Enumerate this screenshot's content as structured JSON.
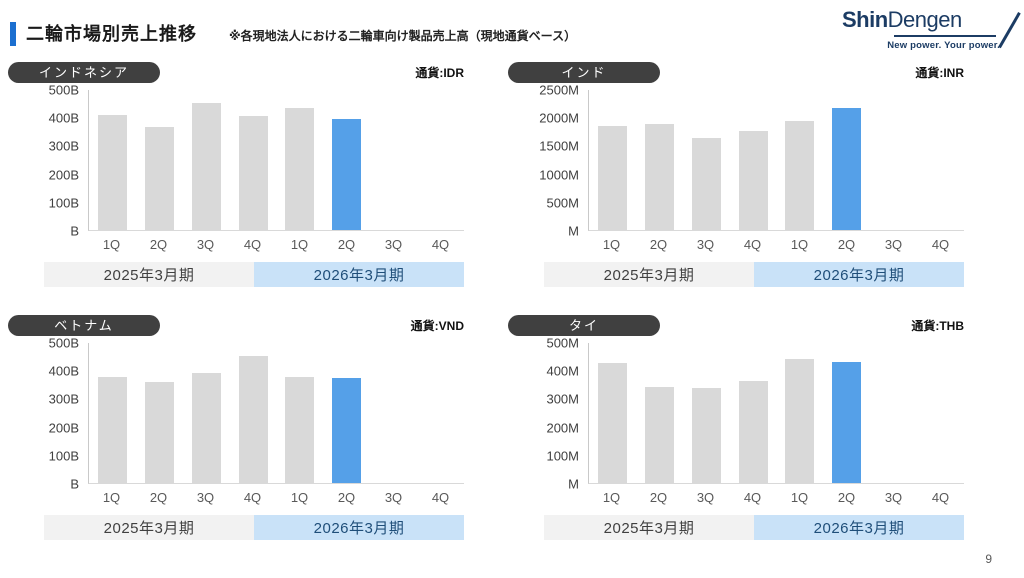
{
  "header": {
    "title": "二輪市場別売上推移",
    "note": "※各現地法人における二輪車向け製品売上高（現地通貨ベース）"
  },
  "logo": {
    "brand_bold": "Shin",
    "brand_regular": "Dengen",
    "tagline": "New power.  Your power."
  },
  "page_number": "9",
  "colors": {
    "accent": "#1b6fd0",
    "logo_navy": "#1c3c64",
    "bar_gray": "#d9d9d9",
    "bar_blue": "#55a0e8",
    "pill_bg": "#404040",
    "band_2025_bg": "#f2f2f2",
    "band_2026_bg": "#c9e2f8",
    "band_2026_text": "#1f4e79"
  },
  "chart_data": [
    {
      "type": "bar",
      "title": "インドネシア",
      "currency_label": "通貨:IDR",
      "unit": "B",
      "categories": [
        "1Q",
        "2Q",
        "3Q",
        "4Q",
        "1Q",
        "2Q",
        "3Q",
        "4Q"
      ],
      "values": [
        410,
        368,
        452,
        406,
        437,
        396,
        null,
        null
      ],
      "highlight_index": 5,
      "ylim": [
        0,
        500
      ],
      "yticks": [
        "500B",
        "400B",
        "300B",
        "200B",
        "100B",
        "B"
      ],
      "period_bands": [
        "2025年3月期",
        "2026年3月期"
      ]
    },
    {
      "type": "bar",
      "title": "インド",
      "currency_label": "通貨:INR",
      "unit": "M",
      "categories": [
        "1Q",
        "2Q",
        "3Q",
        "4Q",
        "1Q",
        "2Q",
        "3Q",
        "4Q"
      ],
      "values": [
        1850,
        1900,
        1640,
        1760,
        1950,
        2180,
        null,
        null
      ],
      "highlight_index": 5,
      "ylim": [
        0,
        2500
      ],
      "yticks": [
        "2500M",
        "2000M",
        "1500M",
        "1000M",
        "500M",
        "M"
      ],
      "period_bands": [
        "2025年3月期",
        "2026年3月期"
      ]
    },
    {
      "type": "bar",
      "title": "ベトナム",
      "currency_label": "通貨:VND",
      "unit": "B",
      "categories": [
        "1Q",
        "2Q",
        "3Q",
        "4Q",
        "1Q",
        "2Q",
        "3Q",
        "4Q"
      ],
      "values": [
        378,
        360,
        393,
        452,
        380,
        374,
        null,
        null
      ],
      "highlight_index": 5,
      "ylim": [
        0,
        500
      ],
      "yticks": [
        "500B",
        "400B",
        "300B",
        "200B",
        "100B",
        "B"
      ],
      "period_bands": [
        "2025年3月期",
        "2026年3月期"
      ]
    },
    {
      "type": "bar",
      "title": "タイ",
      "currency_label": "通貨:THB",
      "unit": "M",
      "categories": [
        "1Q",
        "2Q",
        "3Q",
        "4Q",
        "1Q",
        "2Q",
        "3Q",
        "4Q"
      ],
      "values": [
        430,
        344,
        339,
        365,
        442,
        432,
        null,
        null
      ],
      "highlight_index": 5,
      "ylim": [
        0,
        500
      ],
      "yticks": [
        "500M",
        "400M",
        "300M",
        "200M",
        "100M",
        "M"
      ],
      "period_bands": [
        "2025年3月期",
        "2026年3月期"
      ]
    }
  ]
}
